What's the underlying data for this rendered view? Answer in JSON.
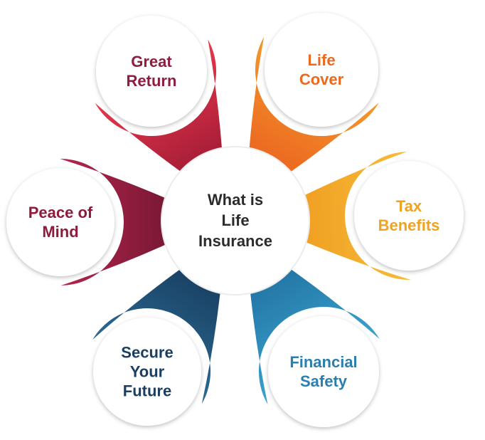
{
  "center": {
    "lines": [
      "What is",
      "Life",
      "Insurance"
    ],
    "color": "#2b2b2b"
  },
  "petals": [
    {
      "id": "great-return",
      "lines": [
        "Great",
        "Return"
      ],
      "color": "#8f1d3f",
      "gradient": [
        "#e8394c",
        "#9b1833"
      ]
    },
    {
      "id": "life-cover",
      "lines": [
        "Life",
        "Cover"
      ],
      "color": "#ec6a1d",
      "gradient": [
        "#f39a2c",
        "#ea5f1f"
      ]
    },
    {
      "id": "tax-benefits",
      "lines": [
        "Tax",
        "Benefits"
      ],
      "color": "#f0a321",
      "gradient": [
        "#f6bd3a",
        "#f09a1e"
      ]
    },
    {
      "id": "financial-safety",
      "lines": [
        "Financial",
        "Safety"
      ],
      "color": "#2b7fae",
      "gradient": [
        "#3ba3cf",
        "#1f6f9f"
      ]
    },
    {
      "id": "secure-your-future",
      "lines": [
        "Secure",
        "Your",
        "Future"
      ],
      "color": "#1b3f60",
      "gradient": [
        "#2c6a93",
        "#163a5c"
      ]
    },
    {
      "id": "peace-of-mind",
      "lines": [
        "Peace of",
        "Mind"
      ],
      "color": "#8e1a3c",
      "gradient": [
        "#b3264c",
        "#6f1530"
      ]
    }
  ]
}
